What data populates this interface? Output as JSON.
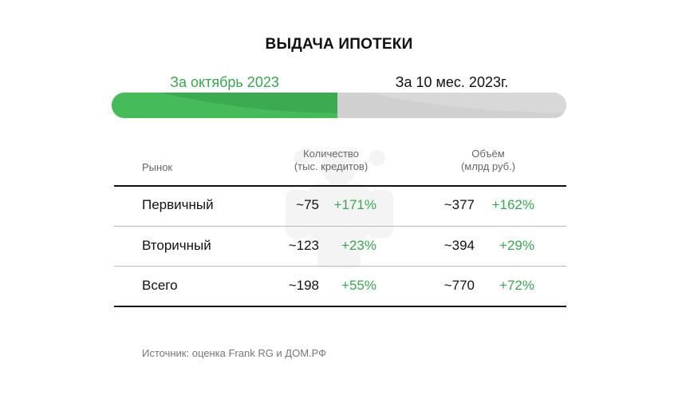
{
  "title": "ВЫДАЧА ИПОТЕКИ",
  "tabs": [
    {
      "label": "За октябрь 2023",
      "active": true
    },
    {
      "label": "За 10 мес. 2023г.",
      "active": false
    }
  ],
  "colors": {
    "accent": "#3caa50",
    "accent_text": "#3aa64f",
    "inactive": "#d8d8d8"
  },
  "table": {
    "headers": {
      "market": "Рынок",
      "quantity": [
        "Количество",
        "(тыс. кредитов)"
      ],
      "volume": [
        "Объём",
        "(млрд руб.)"
      ]
    },
    "rows": [
      {
        "name": "Первичный",
        "qty": "~75",
        "qty_change": "+171%",
        "vol": "~377",
        "vol_change": "+162%"
      },
      {
        "name": "Вторичный",
        "qty": "~123",
        "qty_change": "+23%",
        "vol": "~394",
        "vol_change": "+29%"
      },
      {
        "name": "Всего",
        "qty": "~198",
        "qty_change": "+55%",
        "vol": "~770",
        "vol_change": "+72%"
      }
    ]
  },
  "source": "Источник: оценка Frank RG и ДОМ.РФ"
}
